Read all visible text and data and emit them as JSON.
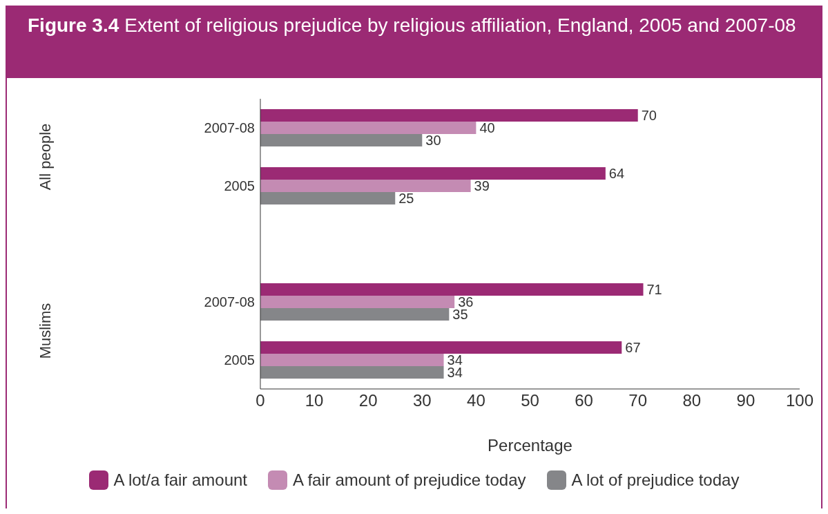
{
  "chart_data": {
    "type": "bar",
    "orientation": "horizontal",
    "title": "Figure 3.4",
    "subtitle": "Extent of religious prejudice by religious affiliation, England, 2005 and 2007-08",
    "categories": [
      "2007-08",
      "2005",
      null,
      "2007-08",
      "2005"
    ],
    "series": [
      {
        "name": "A lot/a fair amount",
        "color": "#9b2a74",
        "values": [
          70,
          64,
          null,
          71,
          67
        ]
      },
      {
        "name": "A fair amount of prejudice today",
        "color": "#c48bb3",
        "values": [
          40,
          39,
          null,
          36,
          34
        ]
      },
      {
        "name": "A lot of prejudice today",
        "color": "#858689",
        "values": [
          30,
          25,
          null,
          35,
          34
        ]
      }
    ],
    "xlim": [
      0,
      100
    ],
    "xticks": [
      0,
      10,
      20,
      30,
      40,
      50,
      60,
      70,
      80,
      90,
      100
    ],
    "xlabel": "Percentage",
    "annotations": [
      "All people",
      "Muslims"
    ],
    "data_labels": true,
    "legend": "bottom"
  }
}
